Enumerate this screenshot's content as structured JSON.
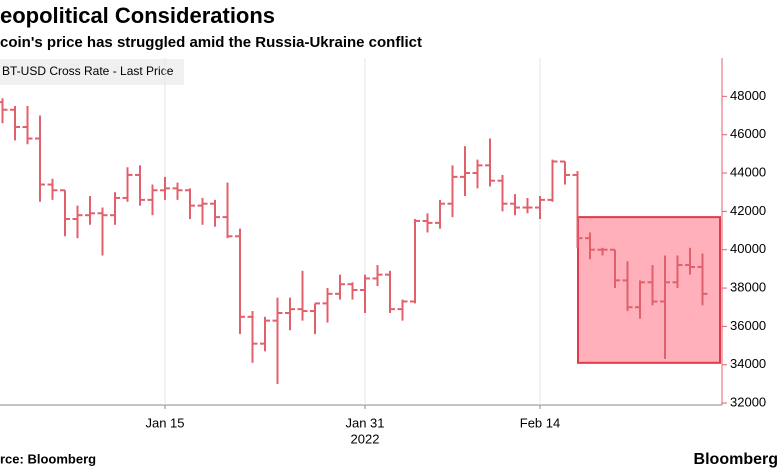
{
  "chart_data": {
    "type": "ohlc",
    "title": "eopolitical Considerations",
    "subtitle": "coin's price has struggled amid the Russia-Ukraine conflict",
    "legend_label": "BT-USD Cross Rate - Last Price",
    "source": "rce: Bloomberg",
    "brand": "Bloomberg",
    "x_sublabel": "2022",
    "color": "#e0606b",
    "categories": [
      null,
      null,
      null,
      null,
      null,
      null,
      null,
      null,
      null,
      null,
      null,
      null,
      null,
      "Jan 15",
      null,
      null,
      null,
      null,
      null,
      null,
      null,
      null,
      null,
      null,
      null,
      null,
      null,
      null,
      null,
      "Jan 31",
      null,
      null,
      null,
      null,
      null,
      null,
      null,
      null,
      null,
      null,
      null,
      null,
      null,
      "Feb 14",
      null,
      null,
      null,
      null,
      null,
      null,
      null,
      null,
      null,
      null,
      null,
      null,
      null
    ],
    "open": [
      47700,
      47300,
      46400,
      45800,
      43400,
      43100,
      41600,
      41800,
      41900,
      41800,
      42700,
      43900,
      42600,
      43100,
      43200,
      43100,
      42300,
      42400,
      41700,
      40700,
      36500,
      35100,
      36300,
      36700,
      36900,
      36800,
      37200,
      37700,
      38200,
      37900,
      38500,
      38700,
      36900,
      37300,
      41500,
      41400,
      42400,
      43800,
      44000,
      44400,
      43600,
      42400,
      42200,
      42200,
      42600,
      44600,
      43900,
      40600,
      40000,
      40000,
      38400,
      37000,
      38300,
      37300,
      38300,
      39200,
      39100
    ],
    "high": [
      47900,
      47500,
      47500,
      47000,
      43700,
      43100,
      42300,
      42800,
      42200,
      43000,
      44300,
      44400,
      43400,
      43800,
      43500,
      43200,
      42700,
      42600,
      43500,
      41100,
      36800,
      36500,
      37500,
      37500,
      38900,
      37200,
      38000,
      38700,
      38300,
      38700,
      39200,
      38900,
      37400,
      41600,
      41900,
      42600,
      44400,
      45400,
      44700,
      45800,
      43900,
      42900,
      42700,
      42800,
      44700,
      44600,
      44100,
      40900,
      40100,
      40000,
      39400,
      38400,
      39200,
      39700,
      39700,
      40100,
      39800
    ],
    "low": [
      46600,
      45700,
      45500,
      42500,
      42600,
      40700,
      40600,
      41300,
      39700,
      41300,
      42500,
      42300,
      41800,
      42600,
      42600,
      41600,
      41300,
      41200,
      40600,
      35600,
      34100,
      34700,
      33000,
      35800,
      36300,
      35600,
      36200,
      37400,
      37400,
      36700,
      38100,
      36700,
      36300,
      37200,
      40900,
      41100,
      41700,
      42800,
      43200,
      43300,
      42000,
      41800,
      41900,
      41600,
      42500,
      43400,
      40100,
      39500,
      39700,
      38000,
      36800,
      36400,
      37100,
      34300,
      38000,
      38700,
      37100
    ],
    "close": [
      47300,
      46400,
      45800,
      43400,
      43100,
      41600,
      41800,
      41900,
      41800,
      42700,
      43900,
      42600,
      43100,
      43200,
      43100,
      42300,
      42400,
      41700,
      40700,
      36500,
      35100,
      36300,
      36700,
      36900,
      36800,
      37200,
      37700,
      38200,
      37900,
      38500,
      38700,
      36900,
      37300,
      41500,
      41400,
      42400,
      43800,
      44000,
      44400,
      43600,
      42400,
      42200,
      42200,
      42600,
      44600,
      43900,
      40600,
      40000,
      40000,
      38400,
      37000,
      38300,
      37300,
      38300,
      39200,
      39100,
      37700
    ],
    "highlight": {
      "ylim": [
        34100,
        41700
      ],
      "color": "#ff7083",
      "edge": "#e03a4c"
    },
    "ylim": [
      31900,
      50000
    ],
    "yticks": [
      32000,
      34000,
      36000,
      38000,
      40000,
      42000,
      44000,
      46000,
      48000
    ],
    "grid": true
  }
}
